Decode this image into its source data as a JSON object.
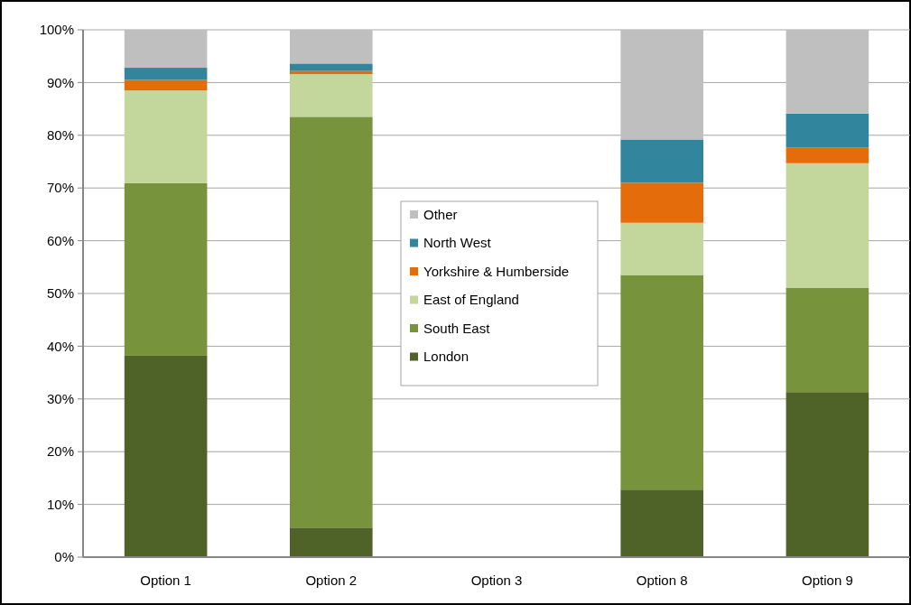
{
  "chart_data": {
    "type": "bar",
    "stacked": true,
    "categories": [
      "Option 1",
      "Option 2",
      "Option 3",
      "Option 8",
      "Option 9"
    ],
    "series": [
      {
        "name": "London",
        "color": "#4f6228",
        "values": [
          38.2,
          5.6,
          null,
          12.8,
          31.3
        ]
      },
      {
        "name": "South East",
        "color": "#77933c",
        "values": [
          32.7,
          77.9,
          null,
          40.7,
          19.8
        ]
      },
      {
        "name": "East of England",
        "color": "#c3d69b",
        "values": [
          17.6,
          8.1,
          null,
          9.9,
          23.6
        ]
      },
      {
        "name": "Yorkshire & Humberside",
        "color": "#e46c0a",
        "values": [
          2.0,
          0.6,
          null,
          7.6,
          3.0
        ]
      },
      {
        "name": "North West",
        "color": "#31859c",
        "values": [
          2.3,
          1.4,
          null,
          8.2,
          6.4
        ]
      },
      {
        "name": "Other",
        "color": "#bfbfbf",
        "values": [
          7.2,
          6.4,
          null,
          20.8,
          15.9
        ]
      }
    ],
    "ylim": [
      0,
      100
    ],
    "yticks": [
      {
        "value": 0,
        "label": "0%"
      },
      {
        "value": 10,
        "label": "10%"
      },
      {
        "value": 20,
        "label": "20%"
      },
      {
        "value": 30,
        "label": "30%"
      },
      {
        "value": 40,
        "label": "40%"
      },
      {
        "value": 50,
        "label": "50%"
      },
      {
        "value": 60,
        "label": "60%"
      },
      {
        "value": 70,
        "label": "70%"
      },
      {
        "value": 80,
        "label": "80%"
      },
      {
        "value": 90,
        "label": "90%"
      },
      {
        "value": 100,
        "label": "100%"
      }
    ],
    "grid": "y",
    "legend": "center"
  }
}
